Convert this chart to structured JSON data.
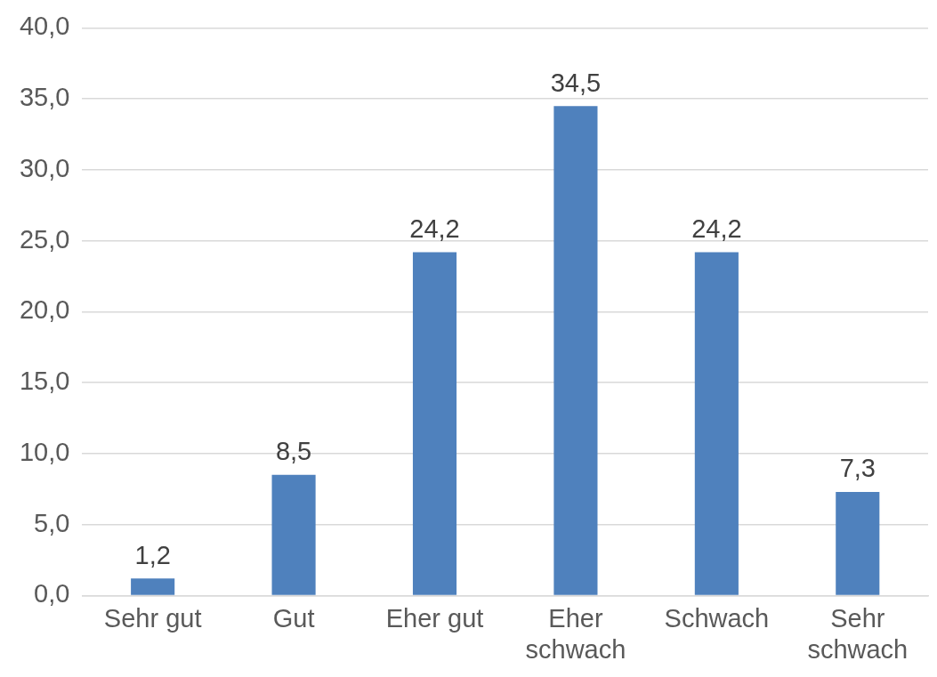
{
  "chart_data": {
    "type": "bar",
    "categories": [
      "Sehr gut",
      "Gut",
      "Eher gut",
      "Eher schwach",
      "Schwach",
      "Sehr schwach"
    ],
    "values": [
      1.2,
      8.5,
      24.2,
      34.5,
      24.2,
      7.3
    ],
    "value_labels": [
      "1,2",
      "8,5",
      "24,2",
      "34,5",
      "24,2",
      "7,3"
    ],
    "color": "#4f81bd",
    "ylim": [
      0,
      40
    ],
    "yticks": [
      {
        "value": 0,
        "label": "0,0"
      },
      {
        "value": 5,
        "label": "5,0"
      },
      {
        "value": 10,
        "label": "10,0"
      },
      {
        "value": 15,
        "label": "15,0"
      },
      {
        "value": 20,
        "label": "20,0"
      },
      {
        "value": 25,
        "label": "25,0"
      },
      {
        "value": 30,
        "label": "30,0"
      },
      {
        "value": 35,
        "label": "35,0"
      },
      {
        "value": 40,
        "label": "40,0"
      }
    ],
    "grid": "y"
  }
}
